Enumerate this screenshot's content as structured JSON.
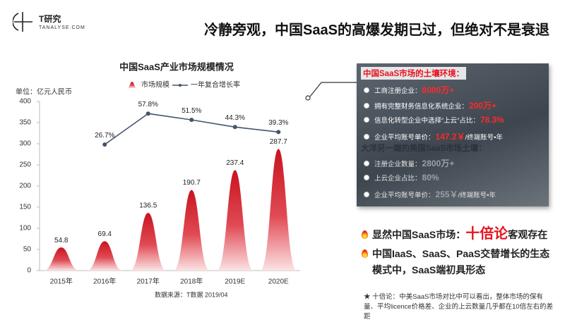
{
  "header": {
    "logo": "T研究",
    "site": "TANALYSE.COM",
    "title": "冷静旁观，中国SaaS的高爆发期已过，但绝对不是衰退"
  },
  "chart_data": {
    "type": "bar",
    "title": "中国SaaS产业市场规模情况",
    "y_label": "单位：亿元人民币",
    "categories": [
      "2015年",
      "2016年",
      "2017年",
      "2018年",
      "2019E",
      "2020E"
    ],
    "series": [
      {
        "name": "市场规模",
        "type": "bar",
        "color": "#d0202e",
        "values": [
          54.8,
          69.4,
          136.5,
          190.7,
          237.4,
          287.7
        ]
      },
      {
        "name": "一年复合增长率",
        "type": "line",
        "axis": "y2",
        "color": "#44546a",
        "values": [
          null,
          26.7,
          57.8,
          51.5,
          44.3,
          39.3
        ],
        "value_labels": [
          null,
          "26.7%",
          "57.8%",
          "51.5%",
          "44.3%",
          "39.3%"
        ]
      }
    ],
    "ylim": [
      0,
      400
    ],
    "yticks": [
      0,
      50,
      100,
      150,
      200,
      250,
      300,
      350,
      400
    ],
    "y2lim": [
      -100,
      70
    ],
    "grid": false,
    "legend": "top",
    "source": "数据来源：T数据 2019/04"
  },
  "panel": {
    "title": "中国SaaS市场的土壤环境：",
    "items": [
      {
        "label": "工商注册企业：",
        "value": "8000万+"
      },
      {
        "label": "拥有完整财务信息化系统企业：",
        "value": "200万+"
      },
      {
        "label": "信息化转型企业中选择“上云”占比：",
        "value": "78.3%"
      },
      {
        "label": "企业平均账号单价：",
        "value": "147.2￥",
        "suffix": "/终端账号•年"
      }
    ],
    "title2": "大洋另一端的美国SaaS市场土壤：",
    "items2": [
      {
        "label": "注册企业数量：",
        "value": "2800万+"
      },
      {
        "label": "上云企业占比：",
        "value": "80%"
      },
      {
        "label": "企业平均账号单价：",
        "value": "255￥",
        "suffix": "/终端账号•年"
      }
    ]
  },
  "conclusions": [
    {
      "lead": "显然中国SaaS市场：",
      "highlight": "十倍论",
      "tail": "客观存在"
    },
    {
      "lead": "中国IaaS、SaaS、PaaS交替增长的生态模式中，SaaS端初具形态"
    }
  ],
  "footnote": "★  十倍论：中美SaaS市场对比中可以看出，整体市场的保有量、平均licence价格差、企业的上云数量几乎都在10倍左右的差距"
}
